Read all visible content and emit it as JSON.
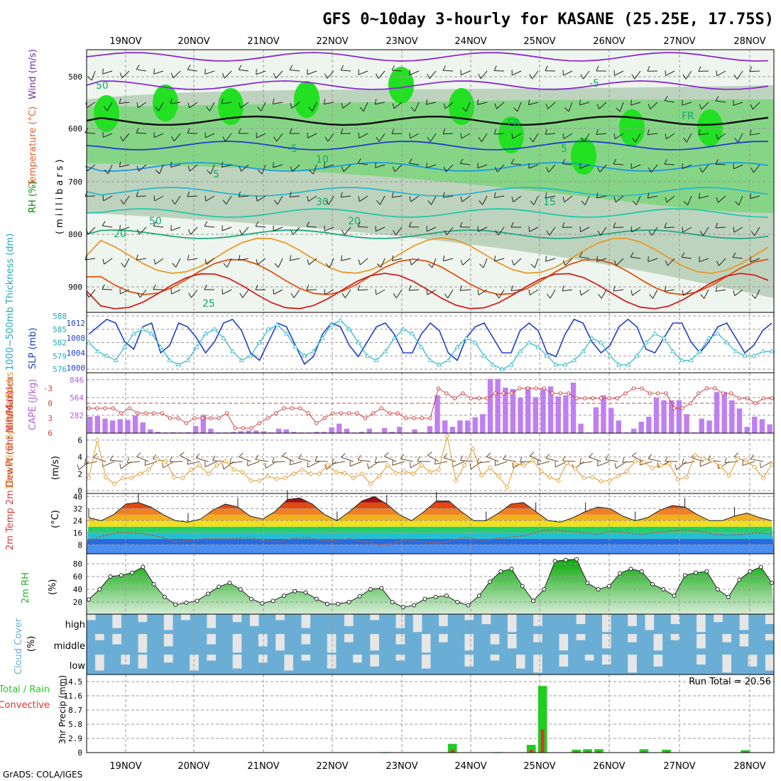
{
  "title": "GFS 0~10day 3-hourly for KASANE (25.25E, 17.75S)",
  "dates": [
    "19NOV",
    "20NOV",
    "21NOV",
    "22NOV",
    "23NOV",
    "24NOV",
    "25NOV",
    "26NOV",
    "27NOV",
    "28NOV"
  ],
  "footer": "GrADS: COLA/IGES",
  "colors": {
    "rh_light": "#d8e6d8",
    "rh_mid": "#a9c4a9",
    "rh_green": "#7fd57f",
    "rh_bright": "#22e022",
    "slp": "#1e3ec8",
    "thickness": "#2ab8c8",
    "lifted": "#d04040",
    "cape": "#c07ff0",
    "wind": "#e59a2a",
    "rh2m": "#22b422",
    "cloud": "#6aaed6",
    "cloud_gap": "#e6e6e6",
    "precip_total": "#22cc22",
    "precip_conv": "#e03030"
  },
  "panels": {
    "upper": {
      "ylabels": [
        "RH (%)",
        "Temperature (°C)",
        "Wind (m/s)"
      ],
      "yaxis_title": "(millibars)",
      "ticks": [
        "500",
        "600",
        "700",
        "800",
        "900"
      ],
      "contour_labels": [
        "50",
        "-5",
        "FR",
        "FR",
        "5",
        "-5",
        "10",
        "5",
        "15",
        "20",
        "20",
        "30",
        "50",
        "25"
      ]
    },
    "slp_thick": {
      "label_left": "1000~500mb Thickness (dm)",
      "label_right": "SLP (mb)",
      "left_ticks": [
        "588",
        "585",
        "582",
        "579",
        "576"
      ],
      "right_ticks": [
        "1012",
        "1008",
        "1004",
        "1000"
      ]
    },
    "li_cape": {
      "label_left": "Lifted Index",
      "label_right": "CAPE (J/kg)",
      "left_ticks": [
        "-3",
        "0",
        "3",
        "6"
      ],
      "right_ticks": [
        "846",
        "564",
        "282"
      ]
    },
    "wind": {
      "label": "10m Wind Speed & Barbs",
      "unit": "(m/s)",
      "ticks": [
        "6",
        "4",
        "2",
        "0"
      ]
    },
    "temp": {
      "label": "2m Temp 2m DewPt (6hr Min/Max)",
      "unit": "(°C)",
      "ticks": [
        "40",
        "32",
        "24",
        "16",
        "8"
      ]
    },
    "rh": {
      "label": "2m RH",
      "unit": "(%)",
      "ticks": [
        "80",
        "60",
        "40",
        "20"
      ]
    },
    "cloud": {
      "label": "Cloud Cover",
      "unit": "(%)",
      "rows": [
        "high",
        "middle",
        "low"
      ]
    },
    "precip": {
      "label_total": "Total / Rain",
      "label_conv": "Convective",
      "axis": "3hr Precip (mm)",
      "ticks": [
        "14.5",
        "11.6",
        "8.7",
        "5.8",
        "2.9",
        "0"
      ],
      "run_total": "Run Total = 20.56"
    }
  },
  "chart_data": {
    "type": "line",
    "x": [
      "19NOV",
      "20NOV",
      "21NOV",
      "22NOV",
      "23NOV",
      "24NOV",
      "25NOV",
      "26NOV",
      "27NOV",
      "28NOV"
    ],
    "slp_mb": [
      1009,
      1011,
      1013,
      1012,
      1007,
      1005,
      1011,
      1012,
      1004,
      1006,
      1012,
      1011,
      1008,
      1004,
      1007,
      1012,
      1013,
      1010,
      1004,
      1002,
      1007,
      1012,
      1011,
      1006,
      1001,
      1003,
      1009,
      1012,
      1011,
      1006,
      1003,
      1007,
      1011,
      1012,
      1009,
      1004,
      1004,
      1009,
      1012,
      1010,
      1004,
      1002,
      1008,
      1011,
      1012,
      1008,
      1004,
      1004,
      1010,
      1012,
      1010,
      1004,
      1003,
      1009,
      1013,
      1012,
      1007,
      1004,
      1006,
      1011,
      1013,
      1011,
      1005,
      1004,
      1008,
      1012,
      1012,
      1007,
      1004,
      1007,
      1011,
      1012,
      1008,
      1004,
      1006,
      1010,
      1012
    ],
    "thickness_dm": [
      582,
      580,
      579,
      578,
      581,
      584,
      585,
      584,
      581,
      578,
      577,
      578,
      581,
      584,
      585,
      583,
      580,
      578,
      579,
      582,
      585,
      586,
      584,
      581,
      579,
      580,
      583,
      586,
      587,
      585,
      582,
      579,
      578,
      580,
      583,
      585,
      584,
      581,
      578,
      577,
      578,
      581,
      583,
      582,
      579,
      577,
      576,
      577,
      580,
      582,
      581,
      579,
      577,
      577,
      578,
      580,
      583,
      582,
      579,
      577,
      577,
      579,
      582,
      584,
      583,
      580,
      578,
      578,
      580,
      583,
      584,
      582,
      580,
      579,
      579,
      580,
      580
    ],
    "lifted_index": [
      1,
      1,
      1,
      1,
      2,
      1,
      2,
      2,
      2,
      2,
      3,
      3,
      4,
      3,
      3,
      3,
      3,
      2,
      5,
      5,
      5,
      4,
      3,
      2,
      1,
      1,
      1,
      2,
      4,
      3,
      2,
      2,
      2,
      2,
      3,
      2,
      1,
      2,
      2,
      3,
      3,
      3,
      3,
      -3,
      -2,
      -1,
      -2,
      -1,
      -1,
      -1,
      -2,
      -2,
      -2,
      -3,
      -3,
      -3,
      -3,
      -2,
      -2,
      -2,
      -1,
      -1,
      -1,
      -1,
      -1,
      -1,
      -2,
      -3,
      -3,
      -2,
      -2,
      -2,
      1,
      1,
      0,
      -2,
      -3,
      -3,
      -2,
      -2,
      -1,
      -1,
      0,
      -1,
      -1
    ],
    "cape_jkg": [
      260,
      270,
      230,
      200,
      220,
      210,
      280,
      170,
      60,
      20,
      10,
      15,
      10,
      15,
      110,
      290,
      70,
      10,
      10,
      20,
      30,
      40,
      40,
      30,
      10,
      70,
      60,
      20,
      10,
      10,
      20,
      20,
      90,
      150,
      70,
      10,
      20,
      70,
      10,
      80,
      20,
      100,
      10,
      60,
      10,
      110,
      600,
      200,
      100,
      200,
      200,
      250,
      300,
      860,
      860,
      720,
      700,
      560,
      730,
      570,
      700,
      740,
      580,
      600,
      800,
      150,
      10,
      410,
      600,
      400,
      200,
      10,
      70,
      180,
      260,
      560,
      520,
      520,
      520,
      300,
      10,
      230,
      200,
      650,
      650,
      520,
      390,
      100,
      260,
      220,
      140
    ],
    "wind_ms": [
      1.5,
      6,
      1.6,
      0.8,
      1.5,
      1.5,
      2,
      2.5,
      3.7,
      3.5,
      1.6,
      1.5,
      2.5,
      3,
      2,
      3,
      3.5,
      2.5,
      2.2,
      1.2,
      1.2,
      1.7,
      1.4,
      1.5,
      2,
      2.5,
      2,
      2,
      3,
      2.2,
      2.1,
      1.5,
      2,
      0.8,
      1.7,
      3,
      2.1,
      2.3,
      2,
      3,
      2.2,
      2.5,
      6.5,
      1.2,
      3,
      5,
      1.8,
      2.7,
      1.7,
      0.4,
      3.2,
      3,
      3.6,
      2.3,
      1.6,
      1.2,
      3.3,
      2.6,
      1.5,
      1.6,
      1.1,
      1.2,
      1.7,
      2.3,
      3.5,
      3.4,
      2.7,
      3,
      3.2,
      1.3,
      1.6,
      4.2,
      3.8,
      3.6,
      2.9,
      1.8,
      3.8,
      3.6,
      2.8,
      1.5,
      3.1
    ],
    "temp2m_c": [
      26,
      24,
      28,
      35,
      36,
      33,
      28,
      24,
      23,
      25,
      31,
      35,
      33,
      27,
      25,
      30,
      38,
      39,
      35,
      28,
      24,
      30,
      37,
      40,
      35,
      28,
      24,
      30,
      37,
      37,
      30,
      24,
      24,
      29,
      35,
      36,
      30,
      24,
      23,
      26,
      30,
      33,
      32,
      27,
      24,
      26,
      31,
      34,
      33,
      28,
      24,
      24,
      27,
      29,
      26,
      24
    ],
    "dewpt2m_c": [
      11,
      14,
      16,
      16,
      15,
      13,
      10,
      11,
      12,
      12,
      12,
      13,
      11,
      10,
      12,
      13,
      11,
      11,
      12,
      10,
      8,
      9,
      11,
      10,
      9,
      11,
      13,
      11,
      12,
      13,
      14,
      17,
      18,
      17,
      16,
      15,
      17,
      16,
      15,
      16,
      17,
      18,
      17,
      15,
      14,
      15,
      16,
      15
    ],
    "rh2m_pct": [
      24,
      40,
      60,
      62,
      66,
      75,
      48,
      28,
      16,
      19,
      22,
      33,
      44,
      50,
      40,
      25,
      18,
      22,
      30,
      37,
      35,
      25,
      17,
      17,
      20,
      29,
      40,
      42,
      20,
      12,
      15,
      25,
      28,
      30,
      20,
      15,
      30,
      52,
      68,
      72,
      45,
      22,
      40,
      84,
      86,
      87,
      50,
      40,
      45,
      65,
      72,
      68,
      48,
      40,
      30,
      62,
      66,
      68,
      40,
      28,
      55,
      68,
      75,
      50
    ],
    "precip_mm": [
      0,
      0,
      0,
      0,
      0,
      0,
      0,
      0,
      0,
      0,
      0,
      0,
      0,
      0,
      0,
      0,
      0,
      0,
      0,
      0,
      0,
      0,
      0,
      0,
      0,
      0,
      0.1,
      0,
      0,
      0,
      0.05,
      0,
      1.8,
      0,
      0,
      0,
      0.1,
      0,
      0.05,
      1.6,
      13.6,
      0,
      0,
      0.6,
      0.7,
      0.7,
      0,
      0,
      0,
      0.7,
      0,
      0.6,
      0,
      0,
      0,
      0,
      0,
      0,
      0.5,
      0,
      0
    ],
    "run_total_mm": 20.56
  }
}
